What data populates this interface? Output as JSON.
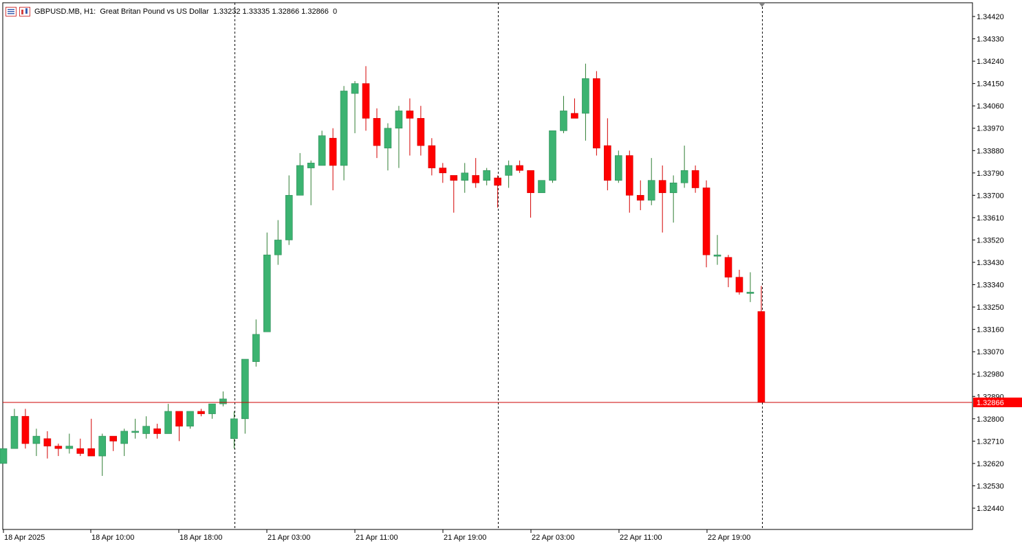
{
  "header": {
    "symbol_line": "GBPUSD.MB, H1:  Great Britan Pound vs US Dollar",
    "ohlc_line": "1.33232 1.33335 1.32866 1.32866  0"
  },
  "colors": {
    "bull": "#3cb371",
    "bear": "#ff0000",
    "grid": "#000000",
    "price_line": "#cc0000",
    "price_tag_bg": "#ff0000",
    "price_tag_fg": "#ffffff",
    "wick_bull": "#2e7d32",
    "wick_bear": "#d40000"
  },
  "price_tag": "1.32866",
  "chart_data": {
    "type": "candlestick",
    "y_ticks": [
      "1.34420",
      "1.34330",
      "1.34240",
      "1.34150",
      "1.34060",
      "1.33970",
      "1.33880",
      "1.33790",
      "1.33700",
      "1.33610",
      "1.33520",
      "1.33430",
      "1.33340",
      "1.33250",
      "1.33160",
      "1.33070",
      "1.32980",
      "1.32890",
      "1.32800",
      "1.32710",
      "1.32620",
      "1.32530",
      "1.32440"
    ],
    "y_range": [
      1.3231,
      1.3447
    ],
    "x_labels": [
      "18 Apr 2025",
      "18 Apr 10:00",
      "18 Apr 18:00",
      "21 Apr 03:00",
      "21 Apr 11:00",
      "21 Apr 19:00",
      "22 Apr 03:00",
      "22 Apr 11:00",
      "22 Apr 19:00"
    ],
    "session_separators": [
      "21 Apr 00:00",
      "22 Apr 00:00",
      "23 Apr 00:00"
    ],
    "current_price": 1.32866,
    "candles": [
      {
        "o": 1.3262,
        "h": 1.3268,
        "l": 1.3262,
        "c": 1.3268
      },
      {
        "o": 1.3268,
        "h": 1.3284,
        "l": 1.3268,
        "c": 1.3281
      },
      {
        "o": 1.3281,
        "h": 1.3284,
        "l": 1.3268,
        "c": 1.327
      },
      {
        "o": 1.327,
        "h": 1.3276,
        "l": 1.3265,
        "c": 1.3273
      },
      {
        "o": 1.3272,
        "h": 1.3275,
        "l": 1.3264,
        "c": 1.3269
      },
      {
        "o": 1.3269,
        "h": 1.327,
        "l": 1.3265,
        "c": 1.3268
      },
      {
        "o": 1.3268,
        "h": 1.3274,
        "l": 1.3266,
        "c": 1.3269
      },
      {
        "o": 1.3268,
        "h": 1.3272,
        "l": 1.3265,
        "c": 1.3266
      },
      {
        "o": 1.3268,
        "h": 1.328,
        "l": 1.3265,
        "c": 1.3265
      },
      {
        "o": 1.3265,
        "h": 1.3274,
        "l": 1.3257,
        "c": 1.3273
      },
      {
        "o": 1.3273,
        "h": 1.3273,
        "l": 1.3267,
        "c": 1.3271
      },
      {
        "o": 1.327,
        "h": 1.3276,
        "l": 1.3265,
        "c": 1.3275
      },
      {
        "o": 1.3275,
        "h": 1.328,
        "l": 1.3272,
        "c": 1.3275
      },
      {
        "o": 1.3274,
        "h": 1.3281,
        "l": 1.3272,
        "c": 1.3277
      },
      {
        "o": 1.3276,
        "h": 1.3278,
        "l": 1.3272,
        "c": 1.3274
      },
      {
        "o": 1.3274,
        "h": 1.3286,
        "l": 1.3274,
        "c": 1.3283
      },
      {
        "o": 1.3283,
        "h": 1.3283,
        "l": 1.3271,
        "c": 1.3277
      },
      {
        "o": 1.3277,
        "h": 1.3283,
        "l": 1.3276,
        "c": 1.3283
      },
      {
        "o": 1.3283,
        "h": 1.3284,
        "l": 1.3281,
        "c": 1.3282
      },
      {
        "o": 1.3282,
        "h": 1.3286,
        "l": 1.328,
        "c": 1.3286
      },
      {
        "o": 1.3286,
        "h": 1.3291,
        "l": 1.3285,
        "c": 1.3288
      },
      {
        "o": 1.3272,
        "h": 1.3283,
        "l": 1.3268,
        "c": 1.328
      },
      {
        "o": 1.328,
        "h": 1.3304,
        "l": 1.3274,
        "c": 1.3304
      },
      {
        "o": 1.3303,
        "h": 1.332,
        "l": 1.3301,
        "c": 1.3314
      },
      {
        "o": 1.3315,
        "h": 1.3355,
        "l": 1.3315,
        "c": 1.3346
      },
      {
        "o": 1.3346,
        "h": 1.336,
        "l": 1.3342,
        "c": 1.3352
      },
      {
        "o": 1.3352,
        "h": 1.3378,
        "l": 1.335,
        "c": 1.337
      },
      {
        "o": 1.337,
        "h": 1.3387,
        "l": 1.337,
        "c": 1.3382
      },
      {
        "o": 1.3381,
        "h": 1.3384,
        "l": 1.3366,
        "c": 1.3383
      },
      {
        "o": 1.3382,
        "h": 1.3396,
        "l": 1.3382,
        "c": 1.3394
      },
      {
        "o": 1.3393,
        "h": 1.3397,
        "l": 1.3372,
        "c": 1.3382
      },
      {
        "o": 1.3382,
        "h": 1.3414,
        "l": 1.3376,
        "c": 1.3412
      },
      {
        "o": 1.3411,
        "h": 1.3416,
        "l": 1.3395,
        "c": 1.3415
      },
      {
        "o": 1.3415,
        "h": 1.3422,
        "l": 1.3396,
        "c": 1.3401
      },
      {
        "o": 1.3401,
        "h": 1.3405,
        "l": 1.3385,
        "c": 1.339
      },
      {
        "o": 1.3389,
        "h": 1.3399,
        "l": 1.338,
        "c": 1.3397
      },
      {
        "o": 1.3397,
        "h": 1.3406,
        "l": 1.3381,
        "c": 1.3404
      },
      {
        "o": 1.3404,
        "h": 1.3409,
        "l": 1.3386,
        "c": 1.3401
      },
      {
        "o": 1.3401,
        "h": 1.3406,
        "l": 1.3386,
        "c": 1.339
      },
      {
        "o": 1.339,
        "h": 1.3393,
        "l": 1.3378,
        "c": 1.3381
      },
      {
        "o": 1.3381,
        "h": 1.3383,
        "l": 1.3375,
        "c": 1.3379
      },
      {
        "o": 1.3378,
        "h": 1.3378,
        "l": 1.3363,
        "c": 1.3376
      },
      {
        "o": 1.3376,
        "h": 1.3383,
        "l": 1.3371,
        "c": 1.3379
      },
      {
        "o": 1.3378,
        "h": 1.3385,
        "l": 1.3373,
        "c": 1.3375
      },
      {
        "o": 1.3376,
        "h": 1.3381,
        "l": 1.3374,
        "c": 1.338
      },
      {
        "o": 1.3377,
        "h": 1.3378,
        "l": 1.3365,
        "c": 1.3374
      },
      {
        "o": 1.3378,
        "h": 1.3384,
        "l": 1.3373,
        "c": 1.3382
      },
      {
        "o": 1.3382,
        "h": 1.3384,
        "l": 1.3379,
        "c": 1.338
      },
      {
        "o": 1.338,
        "h": 1.338,
        "l": 1.3361,
        "c": 1.3371
      },
      {
        "o": 1.3371,
        "h": 1.3376,
        "l": 1.3371,
        "c": 1.3376
      },
      {
        "o": 1.3376,
        "h": 1.3396,
        "l": 1.3375,
        "c": 1.3396
      },
      {
        "o": 1.3396,
        "h": 1.341,
        "l": 1.3395,
        "c": 1.3404
      },
      {
        "o": 1.3403,
        "h": 1.3409,
        "l": 1.3401,
        "c": 1.3401
      },
      {
        "o": 1.3403,
        "h": 1.3423,
        "l": 1.3392,
        "c": 1.3417
      },
      {
        "o": 1.3417,
        "h": 1.342,
        "l": 1.3386,
        "c": 1.3389
      },
      {
        "o": 1.339,
        "h": 1.3401,
        "l": 1.3372,
        "c": 1.3376
      },
      {
        "o": 1.3376,
        "h": 1.3388,
        "l": 1.3375,
        "c": 1.3386
      },
      {
        "o": 1.3386,
        "h": 1.3388,
        "l": 1.3363,
        "c": 1.337
      },
      {
        "o": 1.337,
        "h": 1.3376,
        "l": 1.3364,
        "c": 1.3368
      },
      {
        "o": 1.3368,
        "h": 1.3385,
        "l": 1.3366,
        "c": 1.3376
      },
      {
        "o": 1.3376,
        "h": 1.3382,
        "l": 1.3355,
        "c": 1.3371
      },
      {
        "o": 1.3371,
        "h": 1.3378,
        "l": 1.3359,
        "c": 1.3375
      },
      {
        "o": 1.3375,
        "h": 1.339,
        "l": 1.3373,
        "c": 1.338
      },
      {
        "o": 1.338,
        "h": 1.3382,
        "l": 1.3371,
        "c": 1.3373
      },
      {
        "o": 1.3373,
        "h": 1.3376,
        "l": 1.3341,
        "c": 1.3346
      },
      {
        "o": 1.3346,
        "h": 1.3354,
        "l": 1.3342,
        "c": 1.3346
      },
      {
        "o": 1.3345,
        "h": 1.3346,
        "l": 1.3333,
        "c": 1.3337
      },
      {
        "o": 1.3337,
        "h": 1.334,
        "l": 1.333,
        "c": 1.3331
      },
      {
        "o": 1.3331,
        "h": 1.3339,
        "l": 1.3327,
        "c": 1.3331
      },
      {
        "o": 1.33232,
        "h": 1.33335,
        "l": 1.32866,
        "c": 1.32866
      }
    ]
  }
}
